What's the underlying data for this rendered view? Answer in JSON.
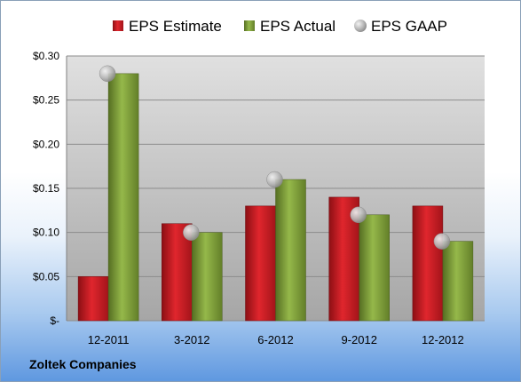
{
  "company": "Zoltek Companies",
  "chart_data": {
    "type": "bar",
    "categories": [
      "12-2011",
      "3-2012",
      "6-2012",
      "9-2012",
      "12-2012"
    ],
    "series": [
      {
        "name": "EPS Estimate",
        "kind": "bar",
        "color": "#c0191f",
        "values": [
          0.05,
          0.11,
          0.13,
          0.14,
          0.13
        ]
      },
      {
        "name": "EPS Actual",
        "kind": "bar",
        "color": "#7a9a34",
        "values": [
          0.28,
          0.1,
          0.16,
          0.12,
          0.09
        ]
      },
      {
        "name": "EPS GAAP",
        "kind": "marker",
        "color": "#b8b8b8",
        "values": [
          0.28,
          0.1,
          0.16,
          0.12,
          0.09
        ]
      }
    ],
    "ylim": [
      0,
      0.3
    ],
    "yticks": [
      0,
      0.05,
      0.1,
      0.15,
      0.2,
      0.25,
      0.3
    ],
    "ytick_labels": [
      "$-",
      "$0.05",
      "$0.10",
      "$0.15",
      "$0.20",
      "$0.25",
      "$0.30"
    ],
    "grid": true,
    "legend_position": "top"
  }
}
